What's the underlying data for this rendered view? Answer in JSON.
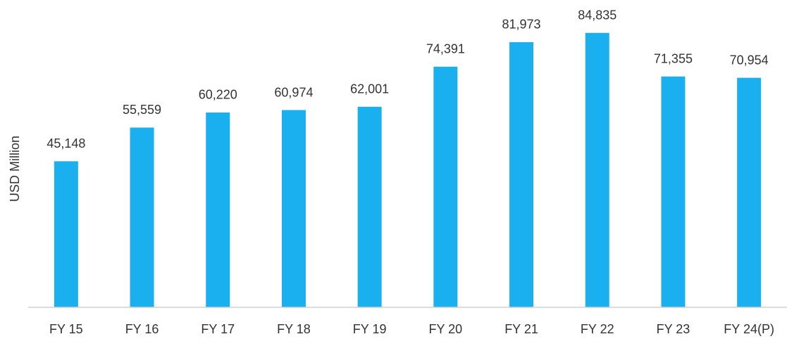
{
  "chart_data": {
    "type": "bar",
    "y_label": "USD Million",
    "categories": [
      "FY 15",
      "FY 16",
      "FY 17",
      "FY 18",
      "FY 19",
      "FY 20",
      "FY 21",
      "FY 22",
      "FY 23",
      "FY 24(P)"
    ],
    "values": [
      45148,
      55559,
      60220,
      60974,
      62001,
      74391,
      81973,
      84835,
      71355,
      70954
    ],
    "value_labels": [
      "45,148",
      "55,559",
      "60,220",
      "60,974",
      "62,001",
      "74,391",
      "81,973",
      "84,835",
      "71,355",
      "70,954"
    ],
    "color": "#1ab0ef",
    "ylim": [
      0,
      90000
    ]
  }
}
